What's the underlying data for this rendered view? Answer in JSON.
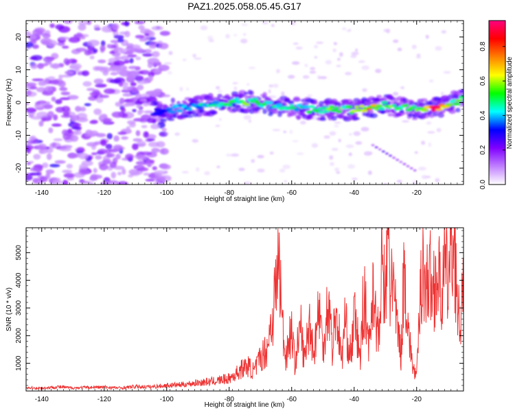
{
  "title": "PAZ1.2025.058.05.45.G17",
  "chart_data": [
    {
      "type": "heatmap",
      "xlabel": "Height of straight line (km)",
      "ylabel": "Frequency (Hz)",
      "xlim": [
        -145,
        -5
      ],
      "ylim": [
        -25,
        25
      ],
      "x_ticks": [
        -140,
        -120,
        -100,
        -80,
        -60,
        -40,
        -20
      ],
      "y_ticks": [
        -20,
        -10,
        0,
        10,
        20
      ],
      "colorbar": {
        "label": "Normalized spectral amplitude",
        "range": [
          0.0,
          0.95
        ],
        "ticks": [
          0.0,
          0.2,
          0.4,
          0.6,
          0.8
        ],
        "tick_labels": [
          "0.0",
          "0.2",
          "0.4",
          "0.6",
          "0.8"
        ],
        "colors": [
          "#ffffff",
          "#c080ff",
          "#8000ff",
          "#0000ff",
          "#00ffff",
          "#00ff00",
          "#ffff00",
          "#ff8000",
          "#ff0000",
          "#ff0080"
        ]
      },
      "ridge": {
        "x": [
          -104,
          -100,
          -95,
          -90,
          -85,
          -80,
          -75,
          -70,
          -65,
          -60,
          -55,
          -50,
          -45,
          -40,
          -35,
          -30,
          -25,
          -20,
          -15,
          -10,
          -5
        ],
        "frequency": [
          -3,
          -2.5,
          -1.5,
          -1,
          -0.5,
          0,
          0.3,
          0,
          -1,
          -1.5,
          -2,
          -2.3,
          -2,
          -2.3,
          -1.5,
          -0.8,
          -1.5,
          -2,
          -1.5,
          -1,
          1.5
        ],
        "amplitude": [
          0.35,
          0.4,
          0.4,
          0.45,
          0.5,
          0.55,
          0.6,
          0.55,
          0.5,
          0.5,
          0.55,
          0.55,
          0.6,
          0.6,
          0.75,
          0.6,
          0.55,
          0.6,
          0.95,
          0.65,
          0.5
        ]
      },
      "secondary_branch": {
        "x": [
          -34,
          -20
        ],
        "frequency": [
          -13,
          -21
        ]
      }
    },
    {
      "type": "line",
      "xlabel": "Height of straight line (km)",
      "ylabel": "SNR (10 * v/v)",
      "xlim": [
        -145,
        -5
      ],
      "ylim": [
        0,
        5900
      ],
      "x_ticks": [
        -140,
        -120,
        -100,
        -80,
        -60,
        -40,
        -20
      ],
      "y_ticks": [
        1000,
        2000,
        3000,
        4000,
        5000
      ],
      "color": "#ee3333",
      "series": [
        {
          "x": [
            -145,
            -140,
            -135,
            -130,
            -125,
            -120,
            -115,
            -110,
            -105,
            -100,
            -95,
            -90,
            -85,
            -80,
            -78,
            -76,
            -74,
            -72,
            -70,
            -68,
            -66,
            -65,
            -64,
            -63.5,
            -63,
            -62,
            -61,
            -60,
            -59,
            -58,
            -57,
            -56,
            -55,
            -54,
            -53,
            -52,
            -51,
            -50,
            -49,
            -48,
            -47,
            -46,
            -45,
            -44,
            -43,
            -42,
            -41,
            -40,
            -39,
            -38,
            -37,
            -36,
            -35,
            -34,
            -33,
            -32,
            -31,
            -30,
            -29,
            -28.5,
            -28,
            -27,
            -26,
            -25,
            -24,
            -23,
            -22,
            -21,
            -20,
            -19,
            -18,
            -17,
            -16,
            -15,
            -14,
            -13,
            -12,
            -11,
            -10,
            -9,
            -8,
            -7.5,
            -7,
            -6,
            -5
          ],
          "y": [
            120,
            100,
            150,
            110,
            130,
            140,
            110,
            160,
            150,
            200,
            230,
            300,
            350,
            450,
            600,
            800,
            900,
            700,
            1200,
            1500,
            2800,
            3800,
            4800,
            3500,
            2500,
            1200,
            1800,
            2200,
            1000,
            1700,
            2300,
            1100,
            1900,
            2600,
            1200,
            2400,
            3000,
            1400,
            2700,
            3200,
            1500,
            2800,
            2300,
            1000,
            2600,
            1800,
            1300,
            2700,
            2000,
            1100,
            3500,
            2500,
            1600,
            4100,
            2500,
            1900,
            4800,
            3200,
            5900,
            3000,
            4800,
            3000,
            2200,
            1300,
            4500,
            2800,
            1500,
            800,
            500,
            3000,
            4900,
            3500,
            4400,
            3500,
            4100,
            4000,
            3500,
            4500,
            4000,
            5000,
            5700,
            4500,
            2800,
            2500,
            3500
          ]
        }
      ]
    }
  ]
}
